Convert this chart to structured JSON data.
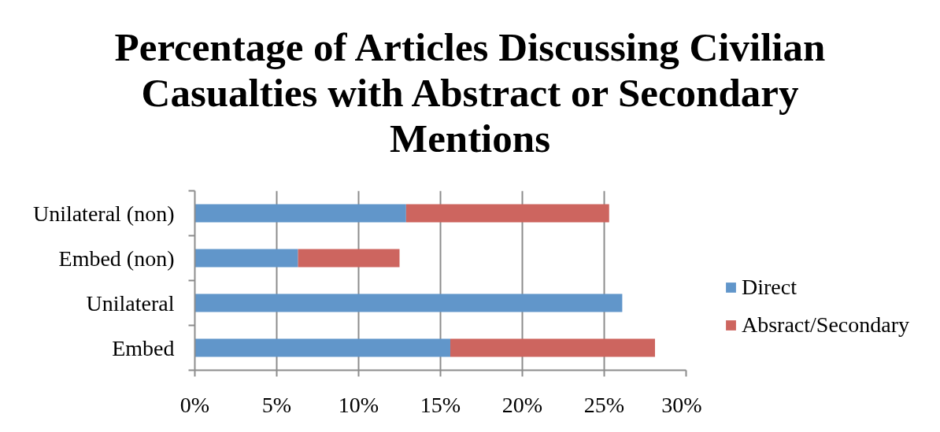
{
  "chart_data": {
    "type": "bar",
    "orientation": "horizontal",
    "stacked": true,
    "title": "Percentage of Articles Discussing Civilian Casualties with Abstract or Secondary Mentions",
    "categories": [
      "Unilateral (non)",
      "Embed (non)",
      "Unilateral",
      "Embed"
    ],
    "series": [
      {
        "name": "Direct",
        "color": "#6196ca",
        "values": [
          12.9,
          6.3,
          26.1,
          15.6
        ]
      },
      {
        "name": "Absract/Secondary",
        "color": "#cd655f",
        "values": [
          12.4,
          6.2,
          null,
          12.5
        ]
      }
    ],
    "xlim": [
      0,
      30
    ],
    "xticks": [
      {
        "value": 0,
        "label": "0%"
      },
      {
        "value": 5,
        "label": "5%"
      },
      {
        "value": 10,
        "label": "10%"
      },
      {
        "value": 15,
        "label": "15%"
      },
      {
        "value": 20,
        "label": "20%"
      },
      {
        "value": 25,
        "label": "25%"
      },
      {
        "value": 30,
        "label": "30%"
      }
    ],
    "grid": "x",
    "legend": "right"
  }
}
